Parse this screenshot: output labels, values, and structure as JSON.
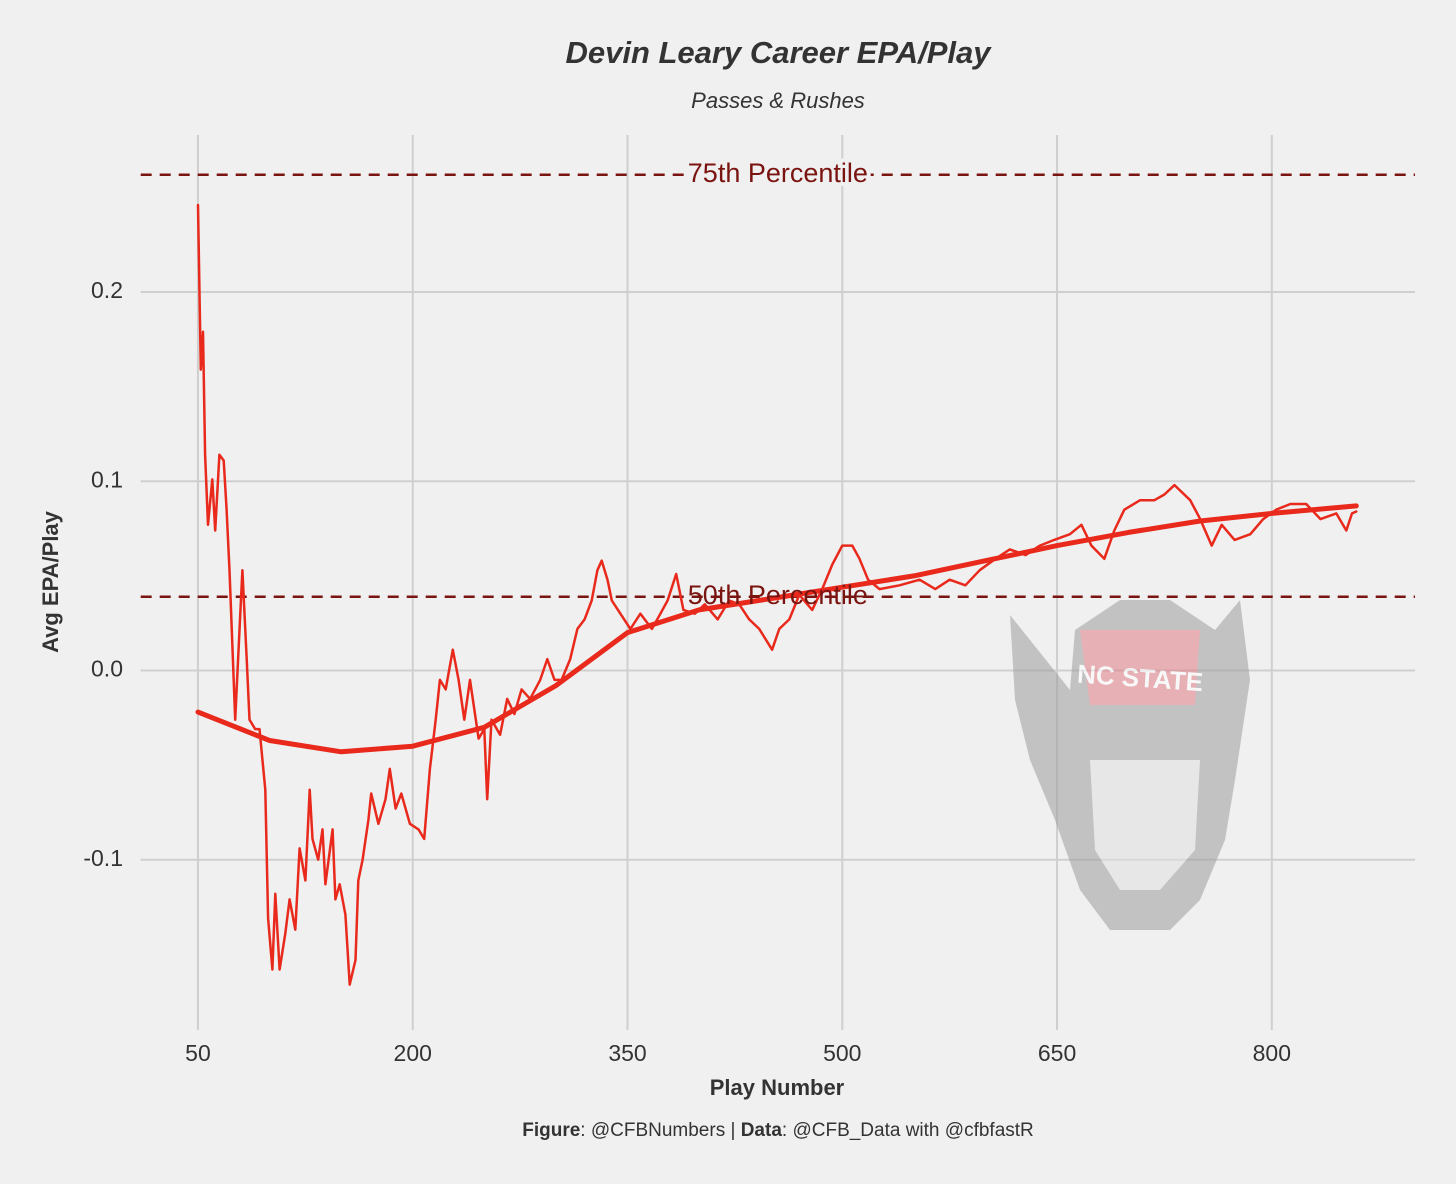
{
  "chart_data": {
    "type": "line",
    "title": "Devin Leary Career EPA/Play",
    "subtitle": "Passes & Rushes",
    "x_label": "Play Number",
    "y_label": "Avg EPA/Play",
    "caption": [
      "Figure",
      ": @CFBNumbers | ",
      "Data",
      ": @CFB_Data with @cfbfastR"
    ],
    "logo_text": "NC STATE",
    "xlim": [
      10,
      900
    ],
    "ylim": [
      -0.19,
      0.283
    ],
    "xticks": [
      50,
      200,
      350,
      500,
      650,
      800
    ],
    "yticks": [
      -0.1,
      {
        "value": 0,
        "label": "0.0"
      },
      0.1,
      0.2
    ],
    "grid": true,
    "hlines": [
      {
        "value": 0.262,
        "label": "75th Percentile",
        "color": "#7a1410"
      },
      {
        "value": 0.039,
        "label": "50th Percentile",
        "color": "#7a1410"
      }
    ],
    "series": [
      {
        "color": "#e8291c",
        "width": 2.5,
        "x": [
          50,
          52,
          53.5,
          55,
          57,
          60,
          62,
          65,
          68,
          70,
          72,
          76,
          78,
          81,
          84,
          86,
          90,
          93,
          97,
          99,
          102,
          104,
          107,
          111,
          114,
          118,
          121,
          125,
          128,
          130,
          134,
          137,
          139,
          144,
          146,
          149,
          153,
          156,
          160,
          162,
          165,
          169,
          171,
          176,
          181,
          184,
          188,
          192,
          198,
          204,
          208,
          212,
          216,
          219,
          223,
          228,
          232,
          236,
          240,
          246,
          250,
          252,
          255,
          261,
          266,
          271,
          276,
          282,
          289,
          294,
          299,
          304,
          310,
          315,
          320,
          325,
          329,
          332,
          336,
          339,
          345,
          352,
          359,
          367,
          373,
          378,
          384,
          389,
          397,
          404,
          413,
          421,
          428,
          435,
          442,
          451,
          456,
          463,
          470,
          479,
          486,
          493,
          500,
          507,
          512,
          518,
          526,
          540,
          554,
          565,
          575,
          586,
          596,
          607,
          617,
          628,
          638,
          648,
          659,
          667,
          674,
          683,
          690,
          697,
          708,
          718,
          725,
          732,
          743,
          750,
          758,
          765,
          774,
          785,
          794,
          803,
          813,
          824,
          834,
          845,
          852,
          856,
          859
        ],
        "values": [
          0.246,
          0.159,
          0.179,
          0.114,
          0.077,
          0.101,
          0.074,
          0.114,
          0.111,
          0.085,
          0.053,
          -0.026,
          0.006,
          0.053,
          0.006,
          -0.026,
          -0.031,
          -0.031,
          -0.063,
          -0.131,
          -0.158,
          -0.118,
          -0.158,
          -0.139,
          -0.121,
          -0.137,
          -0.094,
          -0.111,
          -0.063,
          -0.089,
          -0.1,
          -0.084,
          -0.113,
          -0.084,
          -0.121,
          -0.113,
          -0.129,
          -0.166,
          -0.153,
          -0.111,
          -0.1,
          -0.079,
          -0.065,
          -0.081,
          -0.068,
          -0.052,
          -0.073,
          -0.065,
          -0.081,
          -0.084,
          -0.089,
          -0.052,
          -0.026,
          -0.005,
          -0.01,
          0.011,
          -0.005,
          -0.026,
          -0.005,
          -0.036,
          -0.031,
          -0.068,
          -0.026,
          -0.034,
          -0.015,
          -0.023,
          -0.01,
          -0.015,
          -0.005,
          0.006,
          -0.005,
          -0.005,
          0.006,
          0.022,
          0.027,
          0.037,
          0.053,
          0.058,
          0.048,
          0.037,
          0.03,
          0.022,
          0.03,
          0.022,
          0.03,
          0.037,
          0.051,
          0.032,
          0.03,
          0.035,
          0.027,
          0.037,
          0.035,
          0.027,
          0.022,
          0.011,
          0.022,
          0.027,
          0.04,
          0.032,
          0.043,
          0.056,
          0.066,
          0.066,
          0.059,
          0.048,
          0.043,
          0.045,
          0.048,
          0.043,
          0.048,
          0.045,
          0.053,
          0.059,
          0.064,
          0.061,
          0.066,
          0.069,
          0.072,
          0.077,
          0.066,
          0.059,
          0.074,
          0.085,
          0.09,
          0.09,
          0.093,
          0.098,
          0.09,
          0.08,
          0.066,
          0.077,
          0.069,
          0.072,
          0.08,
          0.085,
          0.088,
          0.088,
          0.08,
          0.083,
          0.074,
          0.083,
          0.084
        ]
      },
      {
        "color": "#e8291c",
        "width": 5,
        "x": [
          50,
          100,
          150,
          200,
          250,
          300,
          350,
          400,
          450,
          500,
          550,
          600,
          650,
          700,
          750,
          800,
          859
        ],
        "values": [
          -0.022,
          -0.037,
          -0.043,
          -0.04,
          -0.03,
          -0.008,
          0.02,
          0.032,
          0.038,
          0.044,
          0.05,
          0.058,
          0.066,
          0.073,
          0.079,
          0.083,
          0.087
        ]
      }
    ]
  }
}
